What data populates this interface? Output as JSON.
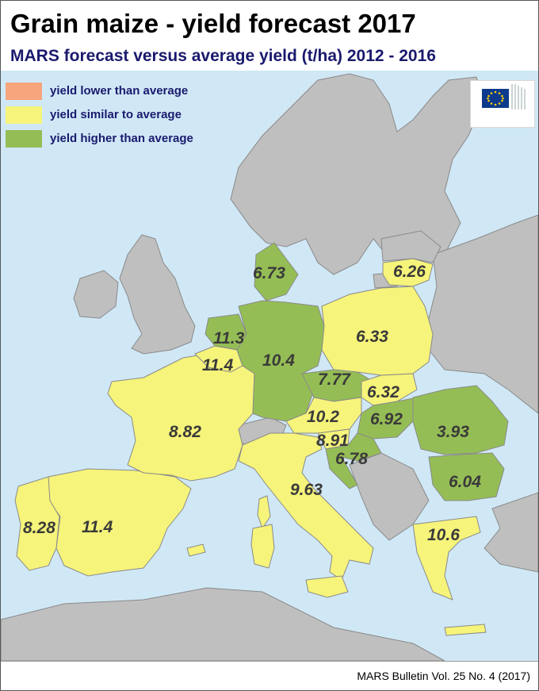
{
  "title": "Grain maize - yield forecast 2017",
  "subtitle": "MARS forecast versus average yield (t/ha) 2012 - 2016",
  "legend": {
    "items": [
      {
        "label": "yield lower than average",
        "color": "#f6a57d"
      },
      {
        "label": "yield similar to average",
        "color": "#f6f47a"
      },
      {
        "label": "yield higher than average",
        "color": "#95bd55"
      }
    ]
  },
  "colors": {
    "sea": "#d0e8f6",
    "non_eu_land": "#bfbfbf",
    "border": "#8a8a8a",
    "similar": "#f6f47a",
    "higher": "#95bd55",
    "lower": "#f6a57d"
  },
  "logo": {
    "icon": "european-commission-logo",
    "text": "European Commission"
  },
  "regions": [
    {
      "name": "Denmark",
      "value": "6.73",
      "category": "higher"
    },
    {
      "name": "Lithuania",
      "value": "6.26",
      "category": "similar"
    },
    {
      "name": "Poland",
      "value": "6.33",
      "category": "similar"
    },
    {
      "name": "Netherlands",
      "value": "11.3",
      "category": "higher"
    },
    {
      "name": "Belgium",
      "value": "11.4",
      "category": "similar"
    },
    {
      "name": "Germany",
      "value": "10.4",
      "category": "higher"
    },
    {
      "name": "Czechia",
      "value": "7.77",
      "category": "higher"
    },
    {
      "name": "Slovakia",
      "value": "6.32",
      "category": "similar"
    },
    {
      "name": "Austria",
      "value": "10.2",
      "category": "similar"
    },
    {
      "name": "Hungary",
      "value": "6.92",
      "category": "higher"
    },
    {
      "name": "Slovenia",
      "value": "8.91",
      "category": "similar"
    },
    {
      "name": "Croatia",
      "value": "6.78",
      "category": "higher"
    },
    {
      "name": "Romania",
      "value": "3.93",
      "category": "higher"
    },
    {
      "name": "Bulgaria",
      "value": "6.04",
      "category": "higher"
    },
    {
      "name": "France",
      "value": "8.82",
      "category": "similar"
    },
    {
      "name": "Italy",
      "value": "9.63",
      "category": "similar"
    },
    {
      "name": "Spain",
      "value": "11.4",
      "category": "similar"
    },
    {
      "name": "Portugal",
      "value": "8.28",
      "category": "similar"
    },
    {
      "name": "Greece",
      "value": "10.6",
      "category": "similar"
    }
  ],
  "footer": "MARS Bulletin Vol. 25 No. 4 (2017)"
}
